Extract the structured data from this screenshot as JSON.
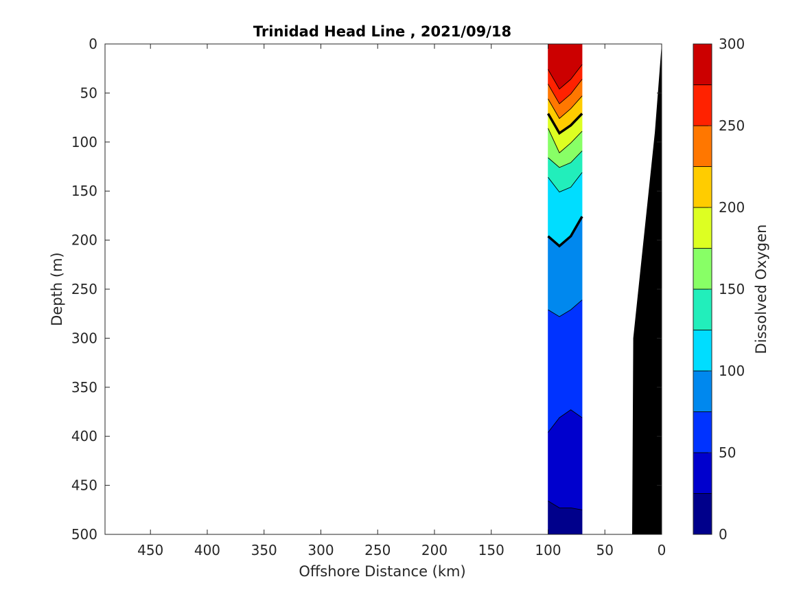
{
  "chart_data": {
    "type": "heatmap",
    "subtype": "filled-contour section",
    "title": "Trinidad Head Line , 2021/09/18",
    "xlabel": "Offshore Distance (km)",
    "ylabel": "Depth (m)",
    "xlim": [
      490,
      0
    ],
    "ylim": [
      500,
      0
    ],
    "x_direction": "reversed",
    "y_direction": "reversed (depth increases downward)",
    "xticks": [
      450,
      400,
      350,
      300,
      250,
      200,
      150,
      100,
      50,
      0
    ],
    "yticks": [
      0,
      50,
      100,
      150,
      200,
      250,
      300,
      350,
      400,
      450,
      500
    ],
    "colorbar": {
      "label": "Dissolved Oxygen",
      "min": 0,
      "max": 300,
      "ticks": [
        0,
        50,
        100,
        150,
        200,
        250,
        300
      ],
      "levels": [
        0,
        25,
        50,
        75,
        100,
        125,
        150,
        175,
        200,
        225,
        250,
        275,
        300
      ],
      "colors": [
        "#00008b",
        "#0000cd",
        "#0033ff",
        "#0088ee",
        "#00ddff",
        "#22eebb",
        "#88ff66",
        "#ddff22",
        "#ffcc00",
        "#ff7700",
        "#ff2200",
        "#cc0000"
      ]
    },
    "data_region_km": [
      70,
      100
    ],
    "contour_levels_labeled_heavy": [
      100,
      200
    ],
    "profiles": [
      {
        "x": 100,
        "boundaries_depth": [
          466,
          396,
          271,
          196,
          136,
          116,
          86,
          71,
          56,
          41,
          26,
          16
        ]
      },
      {
        "x": 90,
        "boundaries_depth": [
          473,
          381,
          278,
          206,
          151,
          126,
          111,
          91,
          76,
          61,
          46,
          31
        ]
      },
      {
        "x": 80,
        "boundaries_depth": [
          473,
          373,
          271,
          196,
          146,
          121,
          101,
          83,
          66,
          51,
          36,
          21
        ]
      },
      {
        "x": 70,
        "boundaries_depth": [
          475,
          381,
          261,
          176,
          131,
          109,
          89,
          71,
          53,
          36,
          21,
          9
        ]
      }
    ],
    "bottom_topography": [
      [
        0,
        0
      ],
      [
        6,
        90
      ],
      [
        25,
        300
      ],
      [
        26,
        500
      ]
    ],
    "bottom_fill": "#000000"
  }
}
